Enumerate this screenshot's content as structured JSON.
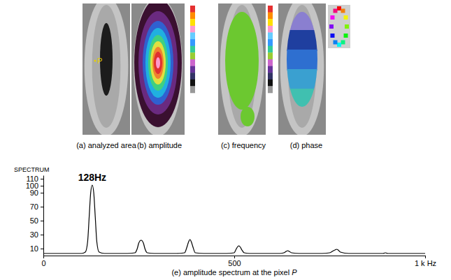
{
  "panels": [
    {
      "caption": "(a) analyzed area",
      "point_label": "P"
    },
    {
      "caption": "(b) amplitude"
    },
    {
      "caption": "(c) frequency"
    },
    {
      "caption": "(d) phase"
    }
  ],
  "chart_data": {
    "type": "line",
    "title": "(e) amplitude spectrum at the pixel P",
    "y_label": "SPECTRUM",
    "color": "#000000",
    "annotations": [
      {
        "text": "128Hz",
        "x": 128
      }
    ],
    "x": [
      0,
      20,
      40,
      60,
      80,
      100,
      110,
      116,
      120,
      124,
      128,
      132,
      136,
      140,
      146,
      160,
      180,
      200,
      220,
      240,
      246,
      250,
      256,
      262,
      266,
      272,
      290,
      310,
      330,
      350,
      370,
      376,
      380,
      384,
      388,
      392,
      398,
      420,
      440,
      460,
      480,
      500,
      504,
      508,
      512,
      516,
      520,
      526,
      540,
      560,
      580,
      600,
      620,
      630,
      636,
      640,
      644,
      650,
      670,
      690,
      710,
      730,
      750,
      760,
      764,
      768,
      772,
      778,
      800,
      820,
      840,
      860,
      880,
      890,
      896,
      902,
      920,
      940,
      960,
      980,
      1000
    ],
    "values": [
      3,
      3,
      3,
      3,
      3,
      3,
      5,
      20,
      55,
      90,
      101,
      90,
      55,
      20,
      5,
      3,
      3,
      3,
      3,
      4,
      10,
      18,
      22,
      18,
      10,
      4,
      3,
      3,
      3,
      3,
      4,
      12,
      19,
      23,
      19,
      12,
      4,
      3,
      3,
      3,
      3,
      4,
      8,
      12,
      14,
      12,
      8,
      4,
      3,
      3,
      3,
      3,
      3,
      4,
      6,
      7,
      6,
      4,
      3,
      3,
      3,
      3,
      4,
      7,
      8,
      9,
      8,
      5,
      3,
      3,
      3,
      3,
      3,
      3,
      4,
      3,
      3,
      3,
      3,
      3,
      3
    ],
    "xlim": [
      0,
      1000
    ],
    "xticks": [
      0,
      500,
      {
        "value": 1000,
        "label": "1 k Hz"
      }
    ],
    "ylim": [
      0,
      115
    ],
    "yticks": [
      10,
      30,
      50,
      70,
      90,
      100,
      110
    ],
    "grid": false
  }
}
